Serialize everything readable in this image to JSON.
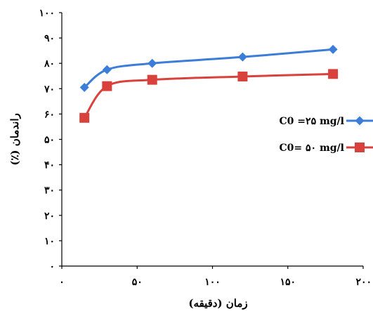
{
  "chart_data": {
    "type": "line",
    "xlabel": "زمان (دقیقه)",
    "ylabel": "راندمان (٪)",
    "xlim": [
      0,
      200
    ],
    "ylim": [
      0,
      100
    ],
    "x_ticks": [
      0,
      50,
      100,
      150,
      200
    ],
    "x_tick_labels": [
      "٠",
      "۵٠",
      "١٠٠",
      "١۵٠",
      "٢٠٠"
    ],
    "y_ticks": [
      0,
      10,
      20,
      30,
      40,
      50,
      60,
      70,
      80,
      90,
      100
    ],
    "y_tick_labels": [
      "٠",
      "١٠",
      "٢٠",
      "٣٠",
      "۴٠",
      "۵٠",
      "۶٠",
      "٧٠",
      "٨٠",
      "٩٠",
      "١٠٠"
    ],
    "grid": false,
    "legend_position": "right",
    "series": [
      {
        "name": "C0 =٢۵ mg/l",
        "color": "#3b7dd8",
        "marker": "diamond",
        "x": [
          15,
          30,
          60,
          120,
          180
        ],
        "y": [
          70.5,
          77.5,
          80,
          82.5,
          85.5
        ]
      },
      {
        "name": "C0= ۵٠ mg/l",
        "color": "#d9413c",
        "marker": "square",
        "x": [
          15,
          30,
          60,
          120,
          180
        ],
        "y": [
          58.5,
          71,
          73.5,
          74.8,
          75.8
        ]
      }
    ]
  }
}
